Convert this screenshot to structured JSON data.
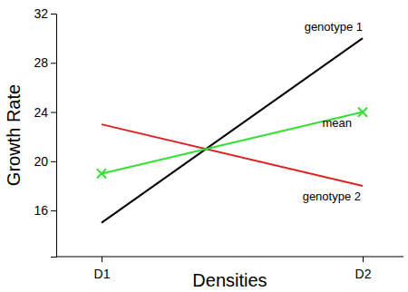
{
  "chart_data": {
    "type": "line",
    "x_label": "Densities",
    "y_label": "Growth Rate",
    "categories": [
      "D1",
      "D2"
    ],
    "series": [
      {
        "name": "genotype 1",
        "color": "#000000",
        "values": [
          15,
          30
        ]
      },
      {
        "name": "genotype 2",
        "color": "#e02020",
        "values": [
          23,
          18
        ]
      },
      {
        "name": "mean",
        "color": "#33e033",
        "values": [
          19,
          24
        ],
        "marker": "x"
      }
    ],
    "ylim": [
      12.25,
      32
    ],
    "yticks": [
      16,
      20,
      24,
      28,
      32
    ]
  }
}
